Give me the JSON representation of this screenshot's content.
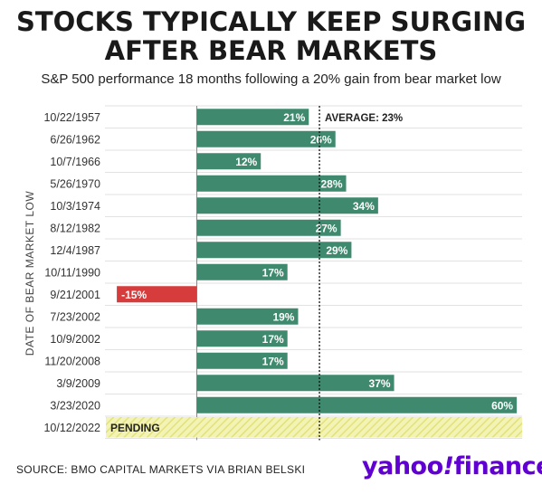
{
  "header": {
    "title_line1": "STOCKS TYPICALLY KEEP SURGING",
    "title_line2": "AFTER BEAR MARKETS",
    "subtitle": "S&P 500 performance 18 months following a 20% gain from bear market low"
  },
  "chart_data": {
    "type": "bar",
    "orientation": "horizontal",
    "ylabel": "DATE OF BEAR MARKET LOW",
    "categories": [
      "10/22/1957",
      "6/26/1962",
      "10/7/1966",
      "5/26/1970",
      "10/3/1974",
      "8/12/1982",
      "12/4/1987",
      "10/11/1990",
      "9/21/2001",
      "7/23/2002",
      "10/9/2002",
      "11/20/2008",
      "3/9/2009",
      "3/23/2020",
      "10/12/2022"
    ],
    "values": [
      21,
      26,
      12,
      28,
      34,
      27,
      29,
      17,
      -15,
      19,
      17,
      17,
      37,
      60,
      null
    ],
    "data_labels": [
      "21%",
      "26%",
      "12%",
      "28%",
      "34%",
      "27%",
      "29%",
      "17%",
      "-15%",
      "19%",
      "17%",
      "17%",
      "37%",
      "60%",
      ""
    ],
    "pending_label": "PENDING",
    "average": {
      "value": 23,
      "label": "AVERAGE: 23%"
    },
    "xlim": [
      -21,
      61
    ],
    "colors": {
      "positive": "#3f8a6e",
      "negative": "#d63c3c",
      "pending_fill": "#f3f3b5",
      "pending_hatch": "#e2e27a"
    },
    "grid": true
  },
  "footer": {
    "source": "SOURCE: BMO CAPITAL MARKETS VIA BRIAN BELSKI",
    "logo_main": "yahoo",
    "logo_slash": "!",
    "logo_tail": "finance"
  }
}
